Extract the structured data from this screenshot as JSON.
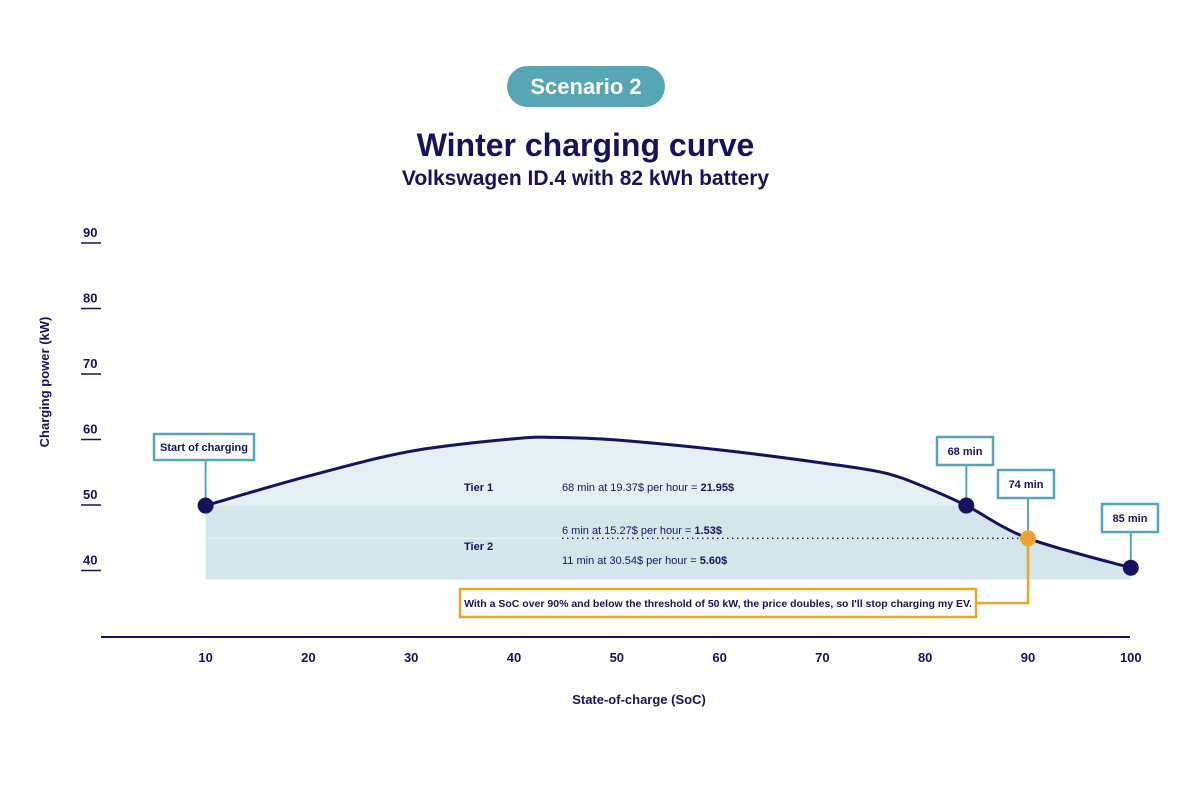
{
  "badge": "Scenario 2",
  "title": "Winter charging curve",
  "subtitle": "Volkswagen ID.4 with 82 kWh battery",
  "colors": {
    "navy": "#17125e",
    "teal": "#56a6b6",
    "orange": "#eea22f",
    "tier1_fill": "#e4f0f3",
    "tier2_fill": "#d2e6ec"
  },
  "chart_data": {
    "type": "area",
    "xlabel": "State-of-charge (SoC)",
    "ylabel": "Charging power (kW)",
    "xlim": [
      0,
      100
    ],
    "ylim": [
      35,
      90
    ],
    "x_ticks": [
      10,
      20,
      30,
      40,
      50,
      60,
      70,
      80,
      90,
      100
    ],
    "y_ticks": [
      40,
      50,
      60,
      70,
      80,
      90
    ],
    "series": [
      {
        "x": [
          10,
          20,
          30,
          40,
          44,
          50,
          60,
          70,
          76,
          80,
          84,
          90,
          100
        ],
        "y": [
          49.0,
          53.5,
          57.3,
          59.2,
          59.4,
          59.0,
          57.5,
          55.5,
          54.0,
          51.8,
          49.0,
          44.0,
          39.5
        ]
      }
    ],
    "markers": [
      {
        "x": 10,
        "y": 49.0,
        "label": "Start of charging",
        "color": "#17125e",
        "box": "#56a6b6"
      },
      {
        "x": 84,
        "y": 49.0,
        "label": "68 min",
        "color": "#17125e",
        "box": "#56a6b6"
      },
      {
        "x": 90,
        "y": 44.0,
        "label": "74 min",
        "color": "#eea22f",
        "box": "#56a6b6"
      },
      {
        "x": 100,
        "y": 39.5,
        "label": "85 min",
        "color": "#17125e",
        "box": "#56a6b6"
      }
    ],
    "tiers": [
      {
        "name": "Tier 1",
        "lines": [
          {
            "text": "68 min at 19.37$ per hour = ",
            "bold": "21.95$"
          }
        ]
      },
      {
        "name": "Tier 2",
        "threshold": 44.0,
        "lines": [
          {
            "text": "6 min at 15.27$ per hour = ",
            "bold": "1.53$"
          },
          {
            "text": "11 min at 30.54$ per hour = ",
            "bold": "5.60$"
          }
        ]
      }
    ],
    "annotation": {
      "text": "With a SoC over 90% and below the threshold of 50 kW, the price doubles, so I'll stop charging my EV.",
      "color": "#eea22f"
    }
  }
}
